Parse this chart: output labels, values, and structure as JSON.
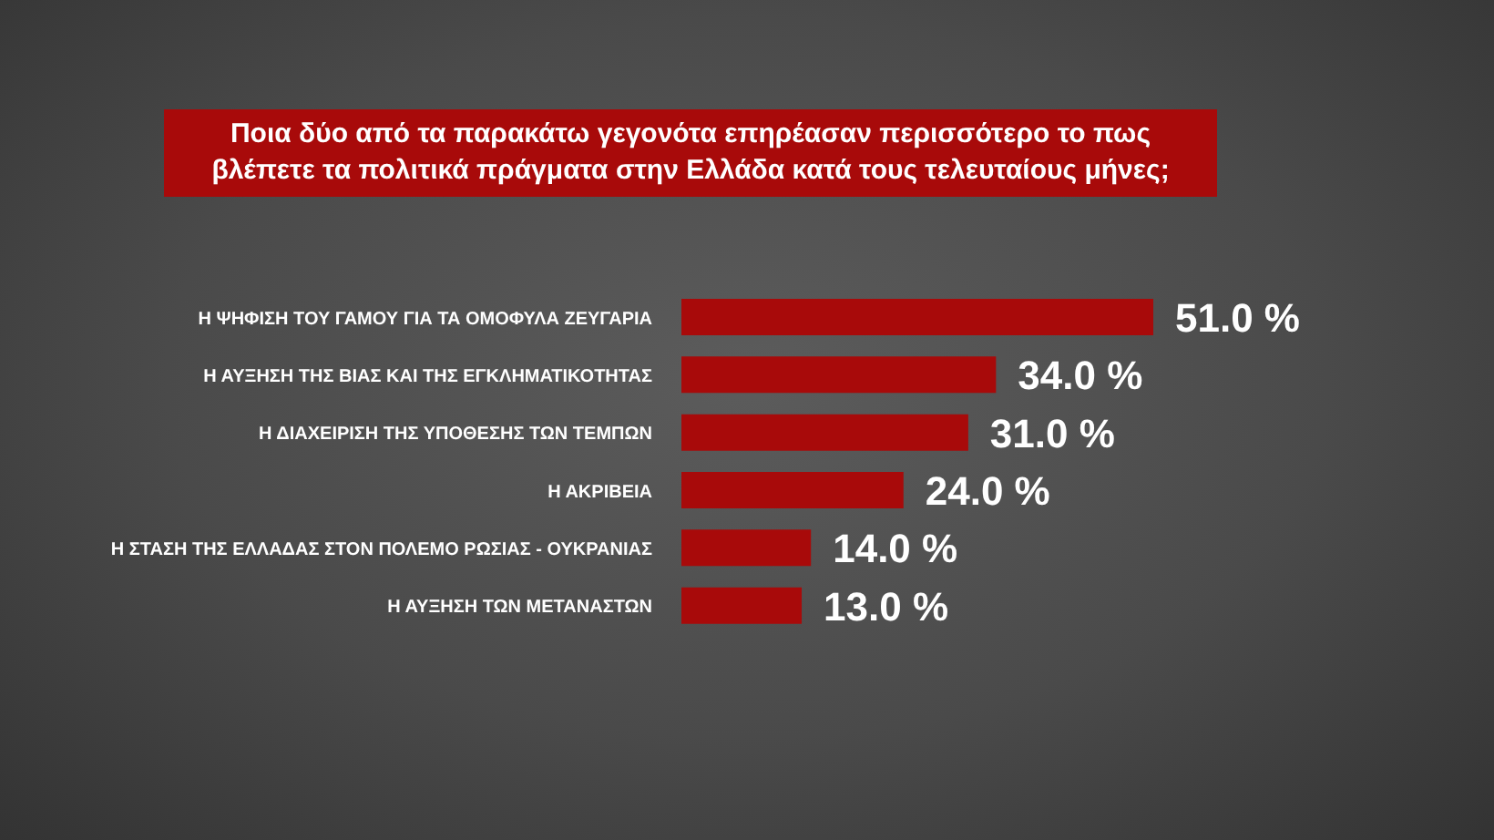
{
  "chart_data": {
    "type": "bar",
    "orientation": "horizontal",
    "title": "Ποια δύο από τα παρακάτω γεγονότα επηρέασαν περισσότερο το πως βλέπετε τα πολιτικά πράγματα στην Ελλάδα κατά τους τελευταίους μήνες;",
    "categories": [
      "Η ΨΗΦΙΣΗ ΤΟΥ ΓΑΜΟΥ ΓΙΑ ΤΑ ΟΜΟΦΥΛΑ ΖΕΥΓΑΡΙΑ",
      "Η ΑΥΞΗΣΗ ΤΗΣ ΒΙΑΣ ΚΑΙ ΤΗΣ ΕΓΚΛΗΜΑΤΙΚΟΤΗΤΑΣ",
      "Η ΔΙΑΧΕΙΡΙΣΗ ΤΗΣ ΥΠΟΘΕΣΗΣ ΤΩΝ ΤΕΜΠΩΝ",
      "Η ΑΚΡΙΒΕΙΑ",
      "Η ΣΤΑΣΗ ΤΗΣ ΕΛΛΑΔΑΣ ΣΤΟΝ ΠΟΛΕΜΟ ΡΩΣΙΑΣ - ΟΥΚΡΑΝΙΑΣ",
      "Η ΑΥΞΗΣΗ ΤΩΝ ΜΕΤΑΝΑΣΤΩΝ"
    ],
    "values": [
      51,
      34,
      31,
      24,
      14,
      13
    ],
    "value_labels": [
      "51.0 %",
      "34.0 %",
      "31.0 %",
      "24.0 %",
      "14.0 %",
      "13.0 %"
    ],
    "color": "#a80a0a",
    "tick_labels": "y"
  }
}
